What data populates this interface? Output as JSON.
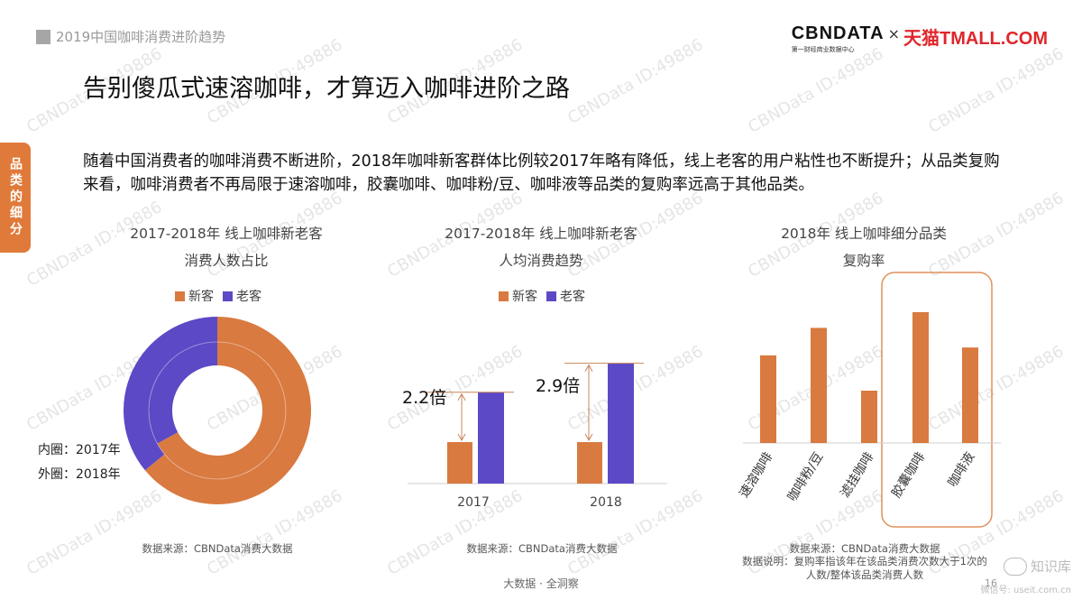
{
  "header": {
    "report_title": "2019中国咖啡消费进阶趋势"
  },
  "brand": {
    "cbn_name": "CBNDATA",
    "cbn_sub": "第一财经商业数据中心",
    "times": "×",
    "tmall": "天猫TMALL.COM"
  },
  "page_title": "告别傻瓜式速溶咖啡，才算迈入咖啡进阶之路",
  "side_tab": "品类的细分",
  "intro_text": "随着中国消费者的咖啡消费不断进阶，2018年咖啡新客群体比例较2017年略有降低，线上老客的用户粘性也不断提升；从品类复购来看，咖啡消费者不再局限于速溶咖啡，胶囊咖啡、咖啡粉/豆、咖啡液等品类的复购率远高于其他品类。",
  "watermark_text": "CBNData ID:49886",
  "colors": {
    "new_customer": "#d97a40",
    "old_customer": "#5b49c6",
    "accent_tab": "#e07a3a",
    "highlight_box": "#e0905a"
  },
  "legend": {
    "new_label": "新客",
    "old_label": "老客"
  },
  "chart_data": [
    {
      "type": "pie",
      "title_line1": "2017-2018年 线上咖啡新老客",
      "title_line2": "消费人数占比",
      "inner_ring_label": "内圈：2017年",
      "outer_ring_label": "外圈：2018年",
      "series": [
        {
          "name": "2017年",
          "ring": "inner",
          "values": {
            "新客": 0.67,
            "老客": 0.33
          }
        },
        {
          "name": "2018年",
          "ring": "outer",
          "values": {
            "新客": 0.64,
            "老客": 0.36
          }
        }
      ],
      "source": "数据来源：CBNData消费大数据"
    },
    {
      "type": "bar",
      "title_line1": "2017-2018年 线上咖啡新老客",
      "title_line2": "人均消费趋势",
      "categories": [
        "2017",
        "2018"
      ],
      "series": [
        {
          "name": "新客",
          "values": [
            1.0,
            1.0
          ]
        },
        {
          "name": "老客",
          "values": [
            2.2,
            2.9
          ]
        }
      ],
      "annotations": [
        "2.2倍",
        "2.9倍"
      ],
      "source": "数据来源：CBNData消费大数据"
    },
    {
      "type": "bar",
      "title_line1": "2018年 线上咖啡细分品类",
      "title_line2": "复购率",
      "categories": [
        "速溶咖啡",
        "咖啡粉/豆",
        "滤挂咖啡",
        "胶囊咖啡",
        "咖啡液"
      ],
      "values": [
        0.67,
        0.88,
        0.4,
        1.0,
        0.73
      ],
      "highlighted": [
        "胶囊咖啡",
        "咖啡液"
      ],
      "source": "数据来源：CBNData消费大数据",
      "note_line1": "数据说明：复购率指该年在该品类消费次数大于1次的",
      "note_line2": "人数/整体该品类消费人数"
    }
  ],
  "footer": {
    "tagline": "大数据 · 全洞察",
    "page_number": "16"
  },
  "wechat": {
    "name": "知识库",
    "site": "微信号: useit.com.cn"
  }
}
